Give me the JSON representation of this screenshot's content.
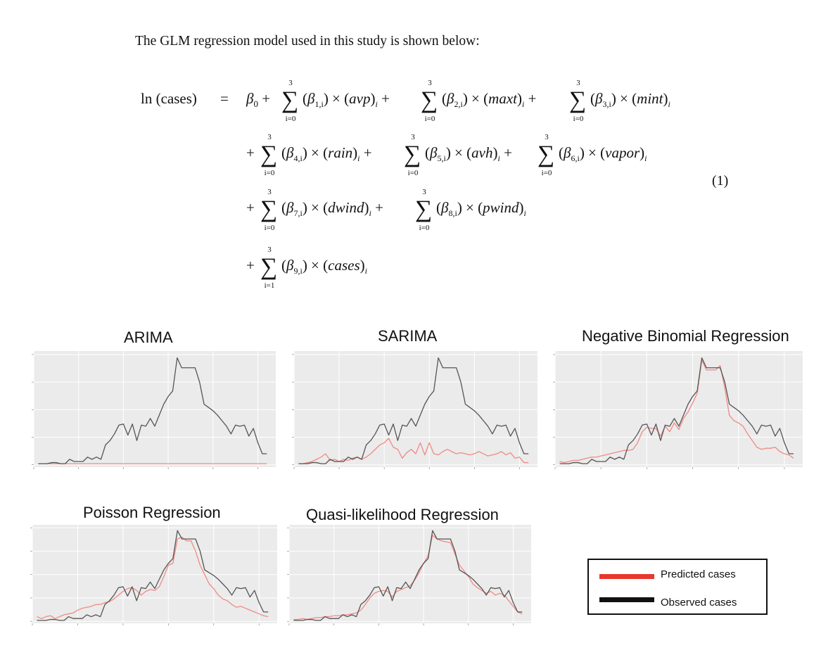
{
  "intro": "The GLM regression model used in this study is shown below:",
  "equation": {
    "lhs": "ln (cases)",
    "equals": "=",
    "number": "(1)",
    "sum_top": "3",
    "sum_bot0": "i=0",
    "sum_bot1": "i=1",
    "beta0": "β",
    "beta0_sub": "0",
    "terms": [
      {
        "coef": "1,i",
        "var": "avp"
      },
      {
        "coef": "2,i",
        "var": "maxt"
      },
      {
        "coef": "3,i",
        "var": "mint"
      },
      {
        "coef": "4,i",
        "var": "rain"
      },
      {
        "coef": "5,i",
        "var": "avh"
      },
      {
        "coef": "6,i",
        "var": "vapor"
      },
      {
        "coef": "7,i",
        "var": "dwind"
      },
      {
        "coef": "8,i",
        "var": "pwind"
      },
      {
        "coef": "9,i",
        "var": "cases"
      }
    ]
  },
  "legend": {
    "predicted": "Predicted cases",
    "observed": "Observed cases",
    "predicted_color": "#e8372c",
    "observed_color": "#111111"
  },
  "chart_data": [
    {
      "type": "line",
      "title": "ARIMA",
      "x": [
        1,
        2,
        3,
        4,
        5,
        6,
        7,
        8,
        9,
        10,
        11,
        12,
        13,
        14,
        15,
        16,
        17,
        18,
        19,
        20,
        21,
        22,
        23,
        24,
        25,
        26,
        27,
        28,
        29,
        30,
        31,
        32,
        33,
        34,
        35,
        36,
        37,
        38,
        39,
        40,
        41,
        42,
        43,
        44,
        45,
        46,
        47,
        48,
        49,
        50,
        51,
        52
      ],
      "ylim": [
        0,
        100
      ],
      "series": [
        {
          "role": "observed",
          "values": [
            1,
            1,
            1,
            2,
            2,
            1,
            1,
            5,
            3,
            3,
            3,
            7,
            5,
            7,
            5,
            18,
            22,
            28,
            36,
            37,
            27,
            37,
            22,
            36,
            35,
            42,
            35,
            45,
            55,
            62,
            67,
            97,
            88,
            88,
            88,
            88,
            75,
            55,
            52,
            49,
            45,
            40,
            35,
            28,
            36,
            35,
            36,
            26,
            33,
            20,
            10,
            10
          ]
        },
        {
          "role": "predicted",
          "values": [
            1,
            1,
            1,
            1,
            1,
            1,
            1,
            1,
            1,
            1,
            1,
            1,
            1,
            1,
            1,
            1,
            1,
            1,
            1,
            1,
            1,
            1,
            1,
            1,
            1,
            1,
            1,
            1,
            1,
            1,
            1,
            1,
            1,
            1,
            1,
            1,
            1,
            1,
            1,
            1,
            1,
            1,
            1,
            1,
            1,
            1,
            1,
            1,
            1,
            1,
            1,
            1
          ]
        }
      ]
    },
    {
      "type": "line",
      "title": "SARIMA",
      "x": [
        1,
        2,
        3,
        4,
        5,
        6,
        7,
        8,
        9,
        10,
        11,
        12,
        13,
        14,
        15,
        16,
        17,
        18,
        19,
        20,
        21,
        22,
        23,
        24,
        25,
        26,
        27,
        28,
        29,
        30,
        31,
        32,
        33,
        34,
        35,
        36,
        37,
        38,
        39,
        40,
        41,
        42,
        43,
        44,
        45,
        46,
        47,
        48,
        49,
        50,
        51,
        52
      ],
      "ylim": [
        0,
        100
      ],
      "series": [
        {
          "role": "observed",
          "values": [
            1,
            1,
            1,
            2,
            2,
            1,
            1,
            5,
            3,
            3,
            3,
            7,
            5,
            7,
            5,
            18,
            22,
            28,
            36,
            37,
            27,
            37,
            22,
            36,
            35,
            42,
            35,
            45,
            55,
            62,
            67,
            97,
            88,
            88,
            88,
            88,
            75,
            55,
            52,
            49,
            45,
            40,
            35,
            28,
            36,
            35,
            36,
            26,
            33,
            20,
            10,
            10
          ]
        },
        {
          "role": "predicted",
          "values": [
            1,
            1,
            2,
            3,
            5,
            7,
            10,
            4,
            5,
            3,
            5,
            4,
            6,
            7,
            5,
            7,
            10,
            14,
            18,
            20,
            24,
            16,
            14,
            6,
            11,
            14,
            10,
            20,
            9,
            20,
            10,
            9,
            12,
            14,
            12,
            10,
            11,
            10,
            9,
            10,
            12,
            10,
            8,
            9,
            10,
            12,
            9,
            11,
            6,
            7,
            2,
            2
          ]
        }
      ]
    },
    {
      "type": "line",
      "title": "Negative Binomial Regression",
      "x": [
        1,
        2,
        3,
        4,
        5,
        6,
        7,
        8,
        9,
        10,
        11,
        12,
        13,
        14,
        15,
        16,
        17,
        18,
        19,
        20,
        21,
        22,
        23,
        24,
        25,
        26,
        27,
        28,
        29,
        30,
        31,
        32,
        33,
        34,
        35,
        36,
        37,
        38,
        39,
        40,
        41,
        42,
        43,
        44,
        45,
        46,
        47,
        48,
        49,
        50,
        51,
        52
      ],
      "ylim": [
        0,
        100
      ],
      "series": [
        {
          "role": "observed",
          "values": [
            1,
            1,
            1,
            2,
            2,
            1,
            1,
            5,
            3,
            3,
            3,
            7,
            5,
            7,
            5,
            18,
            22,
            28,
            36,
            37,
            27,
            37,
            22,
            36,
            35,
            42,
            35,
            45,
            55,
            62,
            67,
            97,
            88,
            88,
            88,
            88,
            75,
            55,
            52,
            49,
            45,
            40,
            35,
            28,
            36,
            35,
            36,
            26,
            33,
            20,
            10,
            10
          ]
        },
        {
          "role": "predicted",
          "values": [
            3,
            2,
            3,
            4,
            4,
            5,
            6,
            7,
            7,
            8,
            9,
            10,
            11,
            12,
            13,
            13,
            14,
            20,
            30,
            34,
            33,
            33,
            26,
            35,
            30,
            38,
            32,
            42,
            48,
            56,
            65,
            95,
            86,
            86,
            86,
            90,
            70,
            45,
            40,
            38,
            35,
            28,
            22,
            16,
            14,
            15,
            15,
            16,
            12,
            10,
            9,
            6
          ]
        }
      ]
    },
    {
      "type": "line",
      "title": "Poisson Regression",
      "x": [
        1,
        2,
        3,
        4,
        5,
        6,
        7,
        8,
        9,
        10,
        11,
        12,
        13,
        14,
        15,
        16,
        17,
        18,
        19,
        20,
        21,
        22,
        23,
        24,
        25,
        26,
        27,
        28,
        29,
        30,
        31,
        32,
        33,
        34,
        35,
        36,
        37,
        38,
        39,
        40,
        41,
        42,
        43,
        44,
        45,
        46,
        47,
        48,
        49,
        50,
        51,
        52
      ],
      "ylim": [
        0,
        100
      ],
      "series": [
        {
          "role": "observed",
          "values": [
            1,
            1,
            1,
            2,
            2,
            1,
            1,
            5,
            3,
            3,
            3,
            7,
            5,
            7,
            5,
            18,
            22,
            28,
            36,
            37,
            27,
            37,
            22,
            36,
            35,
            42,
            35,
            45,
            55,
            62,
            67,
            97,
            88,
            88,
            88,
            88,
            75,
            55,
            52,
            49,
            45,
            40,
            35,
            28,
            36,
            35,
            36,
            26,
            33,
            20,
            10,
            10
          ]
        },
        {
          "role": "predicted",
          "values": [
            5,
            3,
            5,
            6,
            3,
            5,
            7,
            8,
            9,
            12,
            14,
            15,
            16,
            18,
            18,
            20,
            21,
            24,
            28,
            32,
            35,
            36,
            33,
            28,
            32,
            34,
            33,
            37,
            48,
            60,
            62,
            88,
            90,
            86,
            86,
            75,
            60,
            50,
            40,
            35,
            28,
            24,
            22,
            18,
            15,
            16,
            14,
            12,
            10,
            8,
            6,
            5
          ]
        }
      ]
    },
    {
      "type": "line",
      "title": "Quasi-likelihood Regression",
      "x": [
        1,
        2,
        3,
        4,
        5,
        6,
        7,
        8,
        9,
        10,
        11,
        12,
        13,
        14,
        15,
        16,
        17,
        18,
        19,
        20,
        21,
        22,
        23,
        24,
        25,
        26,
        27,
        28,
        29,
        30,
        31,
        32,
        33,
        34,
        35,
        36,
        37,
        38,
        39,
        40,
        41,
        42,
        43,
        44,
        45,
        46,
        47,
        48,
        49,
        50,
        51,
        52
      ],
      "ylim": [
        0,
        100
      ],
      "series": [
        {
          "role": "observed",
          "values": [
            1,
            1,
            1,
            2,
            2,
            1,
            1,
            5,
            3,
            3,
            3,
            7,
            5,
            7,
            5,
            18,
            22,
            28,
            36,
            37,
            27,
            37,
            22,
            36,
            35,
            42,
            35,
            45,
            55,
            62,
            67,
            97,
            88,
            88,
            88,
            88,
            75,
            55,
            52,
            49,
            45,
            40,
            35,
            28,
            36,
            35,
            36,
            26,
            33,
            20,
            10,
            10
          ]
        },
        {
          "role": "predicted",
          "values": [
            2,
            2,
            3,
            2,
            3,
            4,
            4,
            5,
            5,
            6,
            6,
            7,
            7,
            8,
            9,
            12,
            18,
            25,
            30,
            32,
            33,
            32,
            26,
            32,
            34,
            36,
            38,
            44,
            52,
            62,
            70,
            92,
            88,
            86,
            85,
            84,
            72,
            60,
            54,
            48,
            40,
            36,
            33,
            30,
            32,
            28,
            30,
            28,
            22,
            16,
            10,
            8
          ]
        }
      ]
    }
  ]
}
